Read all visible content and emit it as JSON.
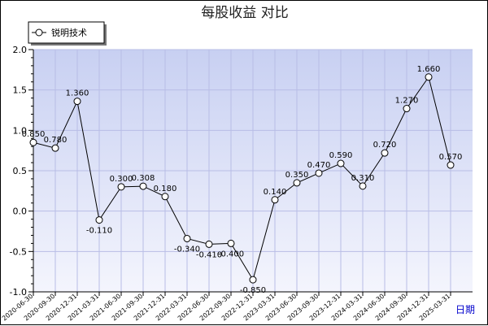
{
  "chart_data": {
    "type": "line",
    "title": "每股收益  对比",
    "xlabel": "日期",
    "ylabel": "",
    "ylim": [
      -1.0,
      2.0
    ],
    "yticks": [
      "2.0",
      "1.5",
      "1.0",
      "0.5",
      "0.0",
      "-0.5",
      "-1.0"
    ],
    "grid": true,
    "legend_position": "top-left",
    "categories": [
      "2020-06-30",
      "2020-09-30",
      "2020-12-31",
      "2021-03-31",
      "2021-06-30",
      "2021-09-30",
      "2021-12-31",
      "2022-03-31",
      "2022-06-30",
      "2022-09-30",
      "2022-12-31",
      "2023-03-31",
      "2023-06-30",
      "2023-09-30",
      "2023-12-31",
      "2024-03-31",
      "2024-06-30",
      "2024-09-30",
      "2024-12-31",
      "2025-03-31"
    ],
    "series": [
      {
        "name": "锐明技术",
        "values": [
          0.85,
          0.78,
          1.36,
          -0.11,
          0.3,
          0.308,
          0.18,
          -0.34,
          -0.41,
          -0.4,
          -0.85,
          0.14,
          0.35,
          0.47,
          0.59,
          0.31,
          0.72,
          1.27,
          1.66,
          0.57
        ],
        "labels": [
          "0.850",
          "0.780",
          "1.360",
          "-0.110",
          "0.300",
          "0.308",
          "0.180",
          "-0.340",
          "-0.410",
          "-0.400",
          "-0.850",
          "0.140",
          "0.350",
          "0.470",
          "0.590",
          "0.310",
          "0.720",
          "1.270",
          "1.660",
          "0.570"
        ]
      }
    ],
    "colors": {
      "plot_bg_top": "#c8d0f2",
      "plot_bg_bottom": "#f4f5fd",
      "grid": "#b8bde6",
      "line": "#000000",
      "xaxis_label": "#0000cc"
    }
  }
}
